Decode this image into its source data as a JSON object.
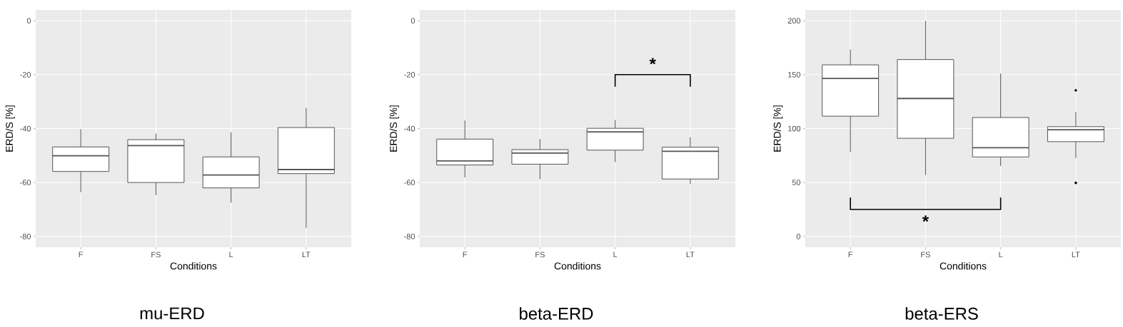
{
  "chart_data": [
    {
      "type": "box",
      "title": "mu-ERD",
      "xlabel": "Conditions",
      "ylabel": "ERD/S [%]",
      "categories": [
        "F",
        "FS",
        "L",
        "LT"
      ],
      "ylim": [
        -84,
        4
      ],
      "yticks": [
        0,
        -20,
        -40,
        -60,
        -80
      ],
      "grid": true,
      "boxes": [
        {
          "low": -63.6,
          "q1": -55.9,
          "median": -50.1,
          "q3": -46.8,
          "high": -40.2
        },
        {
          "low": -64.7,
          "q1": -60,
          "median": -46.3,
          "q3": -44.1,
          "high": -41.9
        },
        {
          "low": -67.4,
          "q1": -62,
          "median": -57.2,
          "q3": -50.5,
          "high": -41.4
        },
        {
          "low": -76.8,
          "q1": -56.7,
          "median": -55.2,
          "q3": -39.6,
          "high": -32.3
        }
      ]
    },
    {
      "type": "box",
      "title": "beta-ERD",
      "xlabel": "Conditions",
      "ylabel": "ERD/S [%]",
      "categories": [
        "F",
        "FS",
        "L",
        "LT"
      ],
      "ylim": [
        -84,
        4
      ],
      "yticks": [
        0,
        -20,
        -40,
        -60,
        -80
      ],
      "grid": true,
      "boxes": [
        {
          "low": -58.1,
          "q1": -53.5,
          "median": -52,
          "q3": -43.9,
          "high": -37
        },
        {
          "low": -58.8,
          "q1": -53.2,
          "median": -49.1,
          "q3": -47.8,
          "high": -43.9
        },
        {
          "low": -52.4,
          "q1": -48,
          "median": -41.2,
          "q3": -39.9,
          "high": -36.8
        },
        {
          "low": -60.6,
          "q1": -58.7,
          "median": -48.4,
          "q3": -46.9,
          "high": -43.2
        }
      ],
      "annotations": [
        "*"
      ]
    },
    {
      "type": "box",
      "title": "beta-ERS",
      "xlabel": "Conditions",
      "ylabel": "ERD/S [%]",
      "categories": [
        "F",
        "FS",
        "L",
        "LT"
      ],
      "ylim": [
        -10,
        210
      ],
      "yticks": [
        0,
        50,
        100,
        150,
        200
      ],
      "grid": true,
      "boxes": [
        {
          "low": 78.4,
          "q1": 111.5,
          "median": 146.5,
          "q3": 159.1,
          "high": 173.3
        },
        {
          "low": 56.9,
          "q1": 91,
          "median": 127.9,
          "q3": 164,
          "high": 199.8
        },
        {
          "low": 65.4,
          "q1": 73.7,
          "median": 82.2,
          "q3": 110.3,
          "high": 151
        },
        {
          "low": 72.8,
          "q1": 87.9,
          "median": 98.9,
          "q3": 101.8,
          "high": 115.3,
          "outliers": [
            135.5,
            49.7
          ]
        }
      ],
      "annotations": [
        "*"
      ]
    }
  ]
}
